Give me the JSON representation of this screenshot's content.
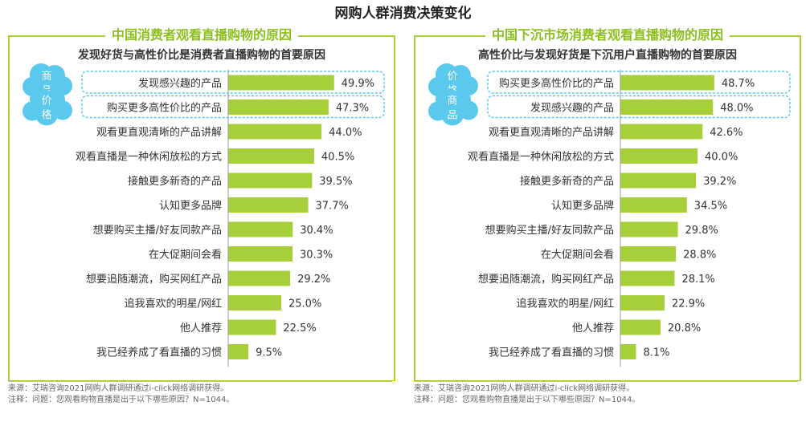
{
  "page": {
    "title": "网购人群消费决策变化"
  },
  "colors": {
    "bar": "#a6cf3a",
    "accent": "#8cbf1f",
    "cloud": "#5bc8ee",
    "highlight_border": "#5bc8ee"
  },
  "chart_data": [
    {
      "type": "bar",
      "orientation": "horizontal",
      "title": "中国消费者观看直播购物的原因",
      "subtitle": "发现好货与高性价比是消费者直播购物的首要原因",
      "categories": [
        "发现感兴趣的产品",
        "购买更多高性价比的产品",
        "观看更直观清晰的产品讲解",
        "观看直播是一种休闲放松的方式",
        "接触更多新奇的产品",
        "认知更多品牌",
        "想要购买主播/好友同款产品",
        "在大促期间会看",
        "想要追随潮流，购买网红产品",
        "追我喜欢的明星/网红",
        "他人推荐",
        "我已经养成了看直播的习惯"
      ],
      "values": [
        49.9,
        47.3,
        44.0,
        40.5,
        39.5,
        37.7,
        30.4,
        30.3,
        29.2,
        25.0,
        22.5,
        9.5
      ],
      "value_labels": [
        "49.9%",
        "47.3%",
        "44.0%",
        "40.5%",
        "39.5%",
        "37.7%",
        "30.4%",
        "30.3%",
        "29.2%",
        "25.0%",
        "22.5%",
        "9.5%"
      ],
      "highlights": [
        {
          "index": 0,
          "tag_chars": [
            "商",
            "品"
          ]
        },
        {
          "index": 1,
          "tag_chars": [
            "价",
            "格"
          ]
        }
      ],
      "xlim": [
        0,
        100
      ],
      "grid": false,
      "footer": {
        "source": "来源：艾瑞咨询2021网购人群调研通过i-click网络调研获得。",
        "note": "注释：问题：您观看购物直播是出于以下哪些原因？N=1044。"
      }
    },
    {
      "type": "bar",
      "orientation": "horizontal",
      "title": "中国下沉市场消费者观看直播购物的原因",
      "subtitle": "高性价比与发现好货是下沉用户直播购物的首要原因",
      "categories": [
        "购买更多高性价比的产品",
        "发现感兴趣的产品",
        "观看更直观清晰的产品讲解",
        "观看直播是一种休闲放松的方式",
        "接触更多新奇的产品",
        "认知更多品牌",
        "想要购买主播/好友同款产品",
        "在大促期间会看",
        "想要追随潮流，购买网红产品",
        "追我喜欢的明星/网红",
        "他人推荐",
        "我已经养成了看直播的习惯"
      ],
      "values": [
        48.7,
        48.0,
        42.6,
        40.0,
        39.2,
        34.5,
        29.8,
        28.8,
        28.1,
        22.9,
        20.8,
        8.1
      ],
      "value_labels": [
        "48.7%",
        "48.0%",
        "42.6%",
        "40.0%",
        "39.2%",
        "34.5%",
        "29.8%",
        "28.8%",
        "28.1%",
        "22.9%",
        "20.8%",
        "8.1%"
      ],
      "highlights": [
        {
          "index": 0,
          "tag_chars": [
            "价",
            "格"
          ]
        },
        {
          "index": 1,
          "tag_chars": [
            "商",
            "品"
          ]
        }
      ],
      "xlim": [
        0,
        100
      ],
      "grid": false,
      "footer": {
        "source": "来源：艾瑞咨询2021网购人群调研通过i-click网络调研获得。",
        "note": "注释：问题：您观看购物直播是出于以下哪些原因？N=1044。"
      }
    }
  ]
}
